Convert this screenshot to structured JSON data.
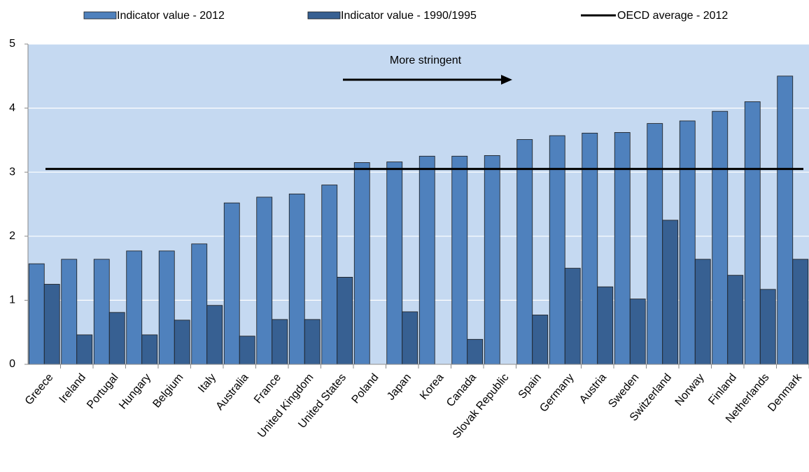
{
  "chart_data": {
    "type": "bar",
    "categories": [
      "Greece",
      "Ireland",
      "Portugal",
      "Hungary",
      "Belgium",
      "Italy",
      "Australia",
      "France",
      "United Kingdom",
      "United States",
      "Poland",
      "Japan",
      "Korea",
      "Canada",
      "Slovak Republic",
      "Spain",
      "Germany",
      "Austria",
      "Sweden",
      "Switzerland",
      "Norway",
      "Finland",
      "Netherlands",
      "Denmark"
    ],
    "series": [
      {
        "name": "Indicator value - 2012",
        "color": "#4f81bd",
        "values": [
          1.57,
          1.64,
          1.64,
          1.77,
          1.77,
          1.88,
          2.52,
          2.61,
          2.66,
          2.8,
          3.15,
          3.16,
          3.25,
          3.25,
          3.26,
          3.51,
          3.57,
          3.61,
          3.62,
          3.76,
          3.8,
          3.95,
          4.1,
          4.5
        ]
      },
      {
        "name": "Indicator value - 1990/1995",
        "color": "#376092",
        "values": [
          1.25,
          0.46,
          0.81,
          0.46,
          0.69,
          0.92,
          0.44,
          0.7,
          0.7,
          1.36,
          null,
          0.82,
          null,
          0.39,
          null,
          0.77,
          1.5,
          1.21,
          1.02,
          2.25,
          1.64,
          1.39,
          1.17,
          1.64
        ]
      }
    ],
    "reference_line": {
      "name": "OECD average - 2012",
      "value": 3.05,
      "color": "#000000"
    },
    "annotation": "More stringent",
    "ylim": [
      0,
      5
    ],
    "yticks": [
      0,
      1,
      2,
      3,
      4,
      5
    ],
    "grid": true,
    "plot_background": "#c5d9f1"
  }
}
